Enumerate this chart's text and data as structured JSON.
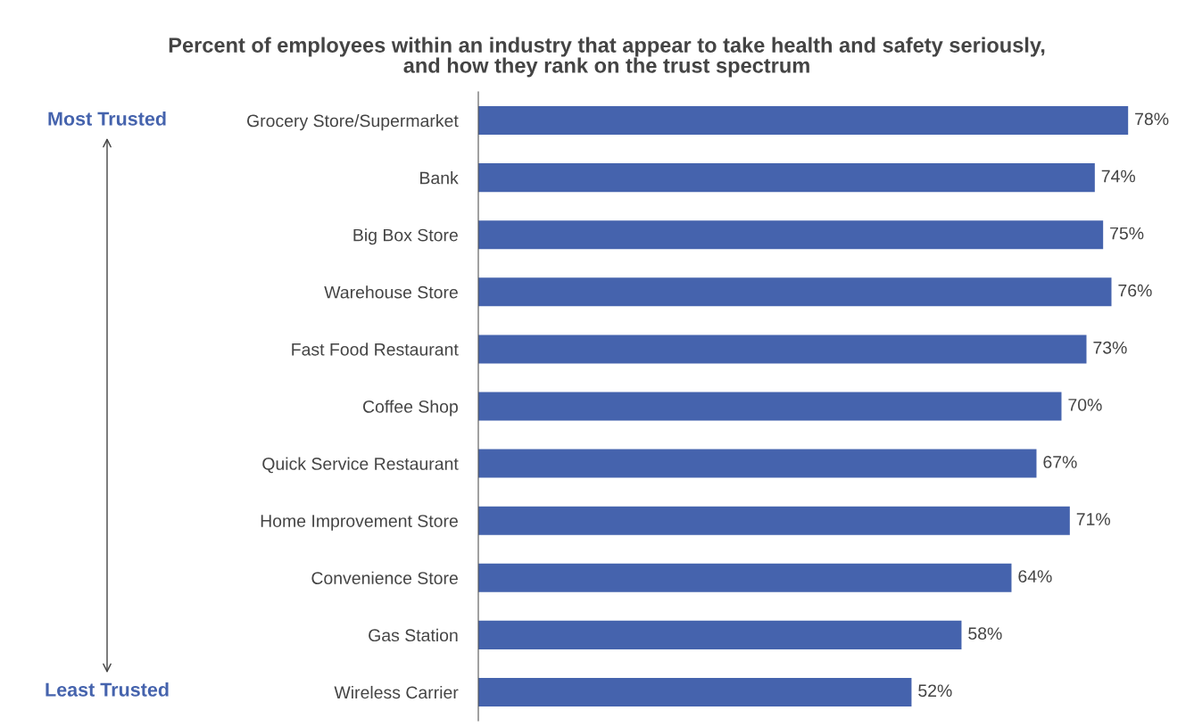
{
  "chart_data": {
    "type": "bar",
    "orientation": "horizontal",
    "title": "Percent of employees within an industry that appear to take health and safety seriously,\nand how they rank on the trust spectrum",
    "categories": [
      "Grocery Store/Supermarket",
      "Bank",
      "Big Box Store",
      "Warehouse Store",
      "Fast Food Restaurant",
      "Coffee Shop",
      "Quick Service Restaurant",
      "Home Improvement Store",
      "Convenience Store",
      "Gas Station",
      "Wireless Carrier"
    ],
    "values": [
      78,
      74,
      75,
      76,
      73,
      70,
      67,
      71,
      64,
      58,
      52
    ],
    "value_labels": [
      "78%",
      "74%",
      "75%",
      "76%",
      "73%",
      "70%",
      "67%",
      "71%",
      "64%",
      "58%",
      "52%"
    ],
    "color": "#4563ad",
    "annotations": [
      "Most Trusted",
      "Least Trusted"
    ],
    "tick_labels": "y",
    "grid": false,
    "legend": false
  }
}
